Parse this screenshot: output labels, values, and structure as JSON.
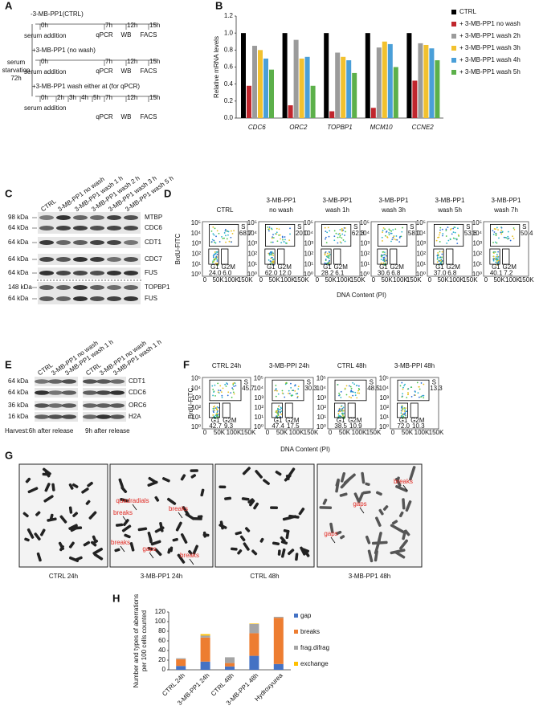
{
  "panel_labels": [
    "A",
    "B",
    "C",
    "D",
    "E",
    "F",
    "G",
    "H"
  ],
  "panel_a": {
    "conditions": [
      "-3-MB-PP1(CTRL)",
      "+3-MB-PP1 (no wash)",
      "+3-MB-PP1  wash either at (for qPCR)"
    ],
    "serum_addition": "serum addition",
    "starvation": [
      "serum",
      "starvation",
      "72h"
    ],
    "times": [
      "0h",
      "7h",
      "12h",
      "15h"
    ],
    "wash_times": [
      "2h",
      "3h",
      "4h",
      "5h"
    ],
    "assays": [
      "qPCR",
      "WB",
      "FACS"
    ]
  },
  "chart_data": [
    {
      "type": "bar",
      "y_label": "Relative mRNA levels",
      "categories": [
        "CDC6",
        "ORC2",
        "TOPBP1",
        "MCM10",
        "CCNE2"
      ],
      "series": [
        {
          "name": "CTRL",
          "color": "#000000",
          "values": [
            1.0,
            1.0,
            1.0,
            1.0,
            1.0
          ]
        },
        {
          "name": "+ 3-MB-PP1 no wash",
          "color": "#c0262d",
          "values": [
            0.38,
            0.15,
            0.08,
            0.12,
            0.44
          ]
        },
        {
          "name": "+ 3-MB-PP1 wash 2h",
          "color": "#9b9b9b",
          "values": [
            0.85,
            0.92,
            0.77,
            0.83,
            0.88
          ]
        },
        {
          "name": "+ 3-MB-PP1 wash 3h",
          "color": "#f2c12e",
          "values": [
            0.8,
            0.7,
            0.72,
            0.9,
            0.86
          ]
        },
        {
          "name": "+ 3-MB-PP1 wash 4h",
          "color": "#4a9fd8",
          "values": [
            0.7,
            0.72,
            0.68,
            0.87,
            0.82
          ]
        },
        {
          "name": "+ 3-MB-PP1 wash  5h",
          "color": "#5cb04a",
          "values": [
            0.57,
            0.38,
            0.53,
            0.6,
            0.68
          ]
        }
      ],
      "ylim": [
        0,
        1.2
      ],
      "yticks": [
        {
          "value": 0,
          "label": "0.0"
        },
        0.2,
        0.4,
        0.6,
        0.8,
        {
          "value": 1,
          "label": "1.0"
        },
        1.2
      ]
    },
    {
      "type": "stacked_bar",
      "y_label": [
        "Number and types of aberrations",
        "per 100 cells counted"
      ],
      "categories": [
        "CTRL 24h",
        "3-MB-PP1 24h",
        "CTRL 48h",
        "3-MB-PP1 48h",
        "Hydroxyurea"
      ],
      "series": [
        {
          "name": "gap",
          "color": "#4472c4",
          "values": [
            8,
            17,
            7,
            29,
            12
          ]
        },
        {
          "name": "breaks",
          "color": "#ed7d31",
          "values": [
            14,
            50,
            7,
            47,
            96
          ]
        },
        {
          "name": "frag.difrag",
          "color": "#a5a5a5",
          "values": [
            2,
            4,
            12,
            19,
            2
          ]
        },
        {
          "name": "exchange",
          "color": "#ffc000",
          "values": [
            0,
            3,
            0,
            1,
            0
          ]
        }
      ],
      "ylim": [
        0,
        120
      ],
      "yticks": [
        0,
        20,
        40,
        60,
        80,
        100,
        120
      ]
    }
  ],
  "panel_c": {
    "lanes": [
      "CTRL",
      "3-MB-PP1 no wash",
      "3-MB-PP1 wash 1 h",
      "3-MB-PP1 wash 2 h",
      "3-MB-PP1 wash 3 h",
      "3-MB-PP1 wash 5 h"
    ],
    "markers": [
      "98 kDa",
      "64 kDa",
      "64 kDa",
      "64 kDa",
      "64 kDa",
      "148 kDa",
      "64 kDa"
    ],
    "proteins": [
      "MTBP",
      "CDC6",
      "CDT1",
      "CDC7",
      "FUS",
      "TOPBP1",
      "FUS"
    ]
  },
  "panel_d": {
    "y_label": "BrdU-FITC",
    "x_label": "DNA Content (PI)",
    "gates": [
      "S",
      "G1",
      "G2M"
    ],
    "xticks": [
      "0",
      "50K",
      "100K",
      "150K"
    ],
    "yticks": [
      "10⁰",
      "10¹",
      "10²",
      "10³",
      "10⁴",
      "10⁵"
    ],
    "plots": [
      {
        "title": [
          "CTRL"
        ],
        "S": "68.7",
        "G1": "24.0",
        "G2M": "6.0"
      },
      {
        "title": [
          "3-MB-PP1",
          "no wash"
        ],
        "S": "20.0",
        "G1": "62.0",
        "G2M": "12.0"
      },
      {
        "title": [
          "3-MB-PP1",
          "wash  1h"
        ],
        "S": "62.3",
        "G1": "28.2",
        "G2M": "6.1"
      },
      {
        "title": [
          "3-MB-PP1",
          "wash 3h"
        ],
        "S": "58.0",
        "G1": "30.6",
        "G2M": "6.8"
      },
      {
        "title": [
          "3-MB-PP1",
          "wash 5h"
        ],
        "S": "53.6",
        "G1": "37.0",
        "G2M": "6.8"
      },
      {
        "title": [
          "3-MB-PP1",
          "wash 7h"
        ],
        "S": "50.4",
        "G1": "40.1",
        "G2M": "7.2"
      }
    ]
  },
  "panel_e": {
    "lanes": [
      "CTRL",
      "3-MB-PP1 no wash",
      "3-MB-PP1 wash 1 h"
    ],
    "markers": [
      "64 kDa",
      "64 kDa",
      "36 kDa",
      "16 kDa"
    ],
    "proteins": [
      "CDT1",
      "CDC6",
      "ORC6",
      "H2A"
    ],
    "harvest": [
      "Harvest:6h after release",
      "9h after release"
    ]
  },
  "panel_f": {
    "y_label": "BrdU-FITC",
    "x_label": "DNA Content (PI)",
    "gates": [
      "S",
      "G1",
      "G2M"
    ],
    "xticks": [
      "0",
      "50K",
      "100K",
      "150K"
    ],
    "yticks": [
      "10⁰",
      "10¹",
      "10²",
      "10³",
      "10⁴",
      "10⁵"
    ],
    "plots": [
      {
        "title": [
          "CTRL 24h"
        ],
        "S": "45.7",
        "G1": "42.7",
        "G2M": "9.3"
      },
      {
        "title": [
          "3-MB-PPI 24h"
        ],
        "S": "30.3",
        "G1": "47.4",
        "G2M": "17.5"
      },
      {
        "title": [
          "CTRL 48h"
        ],
        "S": "48.5",
        "G1": "38.5",
        "G2M": "10.9"
      },
      {
        "title": [
          "3-MB-PPI 48h"
        ],
        "S": "13.3",
        "G1": "72.0",
        "G2M": "10.3"
      }
    ]
  },
  "panel_g": {
    "captions": [
      "CTRL 24h",
      "3-MB-PP1 24h",
      "CTRL 48h",
      "3-MB-PP1 48h"
    ],
    "annotations_24h": [
      "quadradials",
      "breaks",
      "breaks",
      "breaks",
      "gaps",
      "breaks"
    ],
    "annotations_48h": [
      "breaks",
      "gaps",
      "gaps"
    ]
  }
}
